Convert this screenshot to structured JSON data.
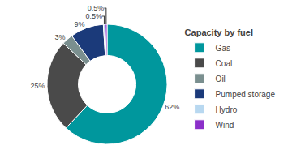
{
  "chart_data": {
    "type": "pie",
    "title": "Capacity by fuel",
    "categories": [
      "Gas",
      "Coal",
      "Oil",
      "Pumped storage",
      "Hydro",
      "Wind"
    ],
    "values": [
      62,
      25,
      3,
      9,
      0.5,
      0.5
    ],
    "value_labels": [
      "62%",
      "25%",
      "3%",
      "9%",
      "0.5%",
      "0.5%"
    ],
    "colors": [
      "#00979d",
      "#4a4a4a",
      "#7a8f8f",
      "#1b3a7a",
      "#b8d8f0",
      "#8b2fc9"
    ],
    "data_labels": true,
    "legend": "right"
  }
}
